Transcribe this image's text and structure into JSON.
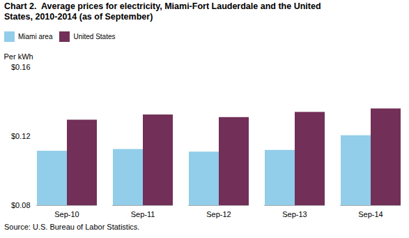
{
  "chart_data": {
    "type": "bar",
    "title": "Chart 2.  Average prices for electricity, Miami-Fort Lauderdale and the United\nStates, 2010-2014 (as of September)",
    "ylabel": "Per kWh",
    "source": "Source: U.S. Bureau of Labor Statistics.",
    "categories": [
      "Sep-10",
      "Sep-11",
      "Sep-12",
      "Sep-13",
      "Sep-14"
    ],
    "series": [
      {
        "name": "Miami area",
        "color": "#92CDEA",
        "values": [
          0.1115,
          0.1125,
          0.111,
          0.112,
          0.1205
        ]
      },
      {
        "name": "United States",
        "color": "#722F57",
        "values": [
          0.1295,
          0.1325,
          0.131,
          0.134,
          0.136
        ]
      }
    ],
    "ylim": [
      0.08,
      0.16
    ],
    "yticks": [
      {
        "value": 0.08,
        "label": "$0.08"
      },
      {
        "value": 0.12,
        "label": "$0.12"
      },
      {
        "value": 0.16,
        "label": "$0.16"
      }
    ],
    "grid": false,
    "legend": "top"
  }
}
